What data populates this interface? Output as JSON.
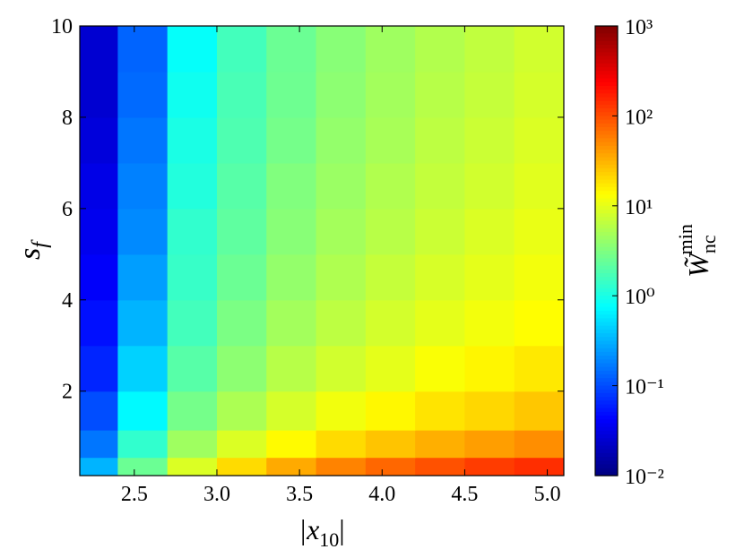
{
  "chart_data": {
    "type": "heatmap",
    "xlabel": [
      "|x",
      "10",
      "|"
    ],
    "ylabel": [
      "s",
      "f"
    ],
    "xlim": [
      2.17,
      5.1
    ],
    "ylim": [
      0.15,
      10
    ],
    "xticks": [
      2.5,
      {
        "value": 3,
        "label": "3.0"
      },
      3.5,
      {
        "value": 4,
        "label": "4.0"
      },
      4.5,
      {
        "value": 5,
        "label": "5.0"
      }
    ],
    "yticks": [
      2,
      4,
      6,
      8,
      10
    ],
    "x": [
      2.25,
      2.55,
      2.85,
      3.15,
      3.45,
      3.75,
      4.05,
      4.35,
      4.65,
      4.95
    ],
    "y": [
      0.3,
      0.8,
      1.5,
      2.5,
      3.5,
      4.5,
      5.5,
      6.5,
      7.5,
      8.5,
      9.5
    ],
    "z": [
      [
        0.32,
        2.5,
        8.9,
        20,
        35,
        54,
        74,
        95,
        120,
        141
      ],
      [
        0.16,
        1.3,
        4.5,
        8.9,
        14,
        20,
        26,
        33,
        40,
        48
      ],
      [
        0.1,
        0.71,
        2.8,
        5.2,
        8.3,
        11.5,
        14.5,
        18,
        21,
        25
      ],
      [
        0.063,
        0.45,
        2.0,
        3.7,
        5.9,
        7.9,
        10,
        12.6,
        14.8,
        17
      ],
      [
        0.05,
        0.32,
        1.6,
        3.0,
        4.7,
        6.3,
        8.1,
        10,
        11.7,
        13.5
      ],
      [
        0.04,
        0.25,
        1.4,
        2.5,
        4.0,
        5.4,
        6.9,
        8.5,
        10,
        11.7
      ],
      [
        0.035,
        0.2,
        1.3,
        2.2,
        3.5,
        4.8,
        6.0,
        7.4,
        8.9,
        10.5
      ],
      [
        0.032,
        0.18,
        1.1,
        2.0,
        3.2,
        4.3,
        5.5,
        6.8,
        7.9,
        9.5
      ],
      [
        0.028,
        0.16,
        1.0,
        1.8,
        2.8,
        4.0,
        5.0,
        6.3,
        7.4,
        8.9
      ],
      [
        0.025,
        0.14,
        0.89,
        1.7,
        2.6,
        3.7,
        4.7,
        5.9,
        6.9,
        8.3
      ],
      [
        0.025,
        0.13,
        0.79,
        1.6,
        2.5,
        3.5,
        4.5,
        5.6,
        6.6,
        7.9
      ]
    ],
    "colorbar": {
      "colormap": "jet",
      "scale": "log",
      "lim": [
        0.01,
        1000
      ],
      "ticks": [
        {
          "value": 0.01,
          "label": "10⁻²"
        },
        {
          "value": 0.1,
          "label": "10⁻¹"
        },
        {
          "value": 1,
          "label": "10⁰"
        },
        {
          "value": 10,
          "label": "10¹"
        },
        {
          "value": 100,
          "label": "10²"
        },
        {
          "value": 1000,
          "label": "10³"
        }
      ],
      "label": [
        "W̃",
        "nc",
        "min"
      ]
    }
  }
}
